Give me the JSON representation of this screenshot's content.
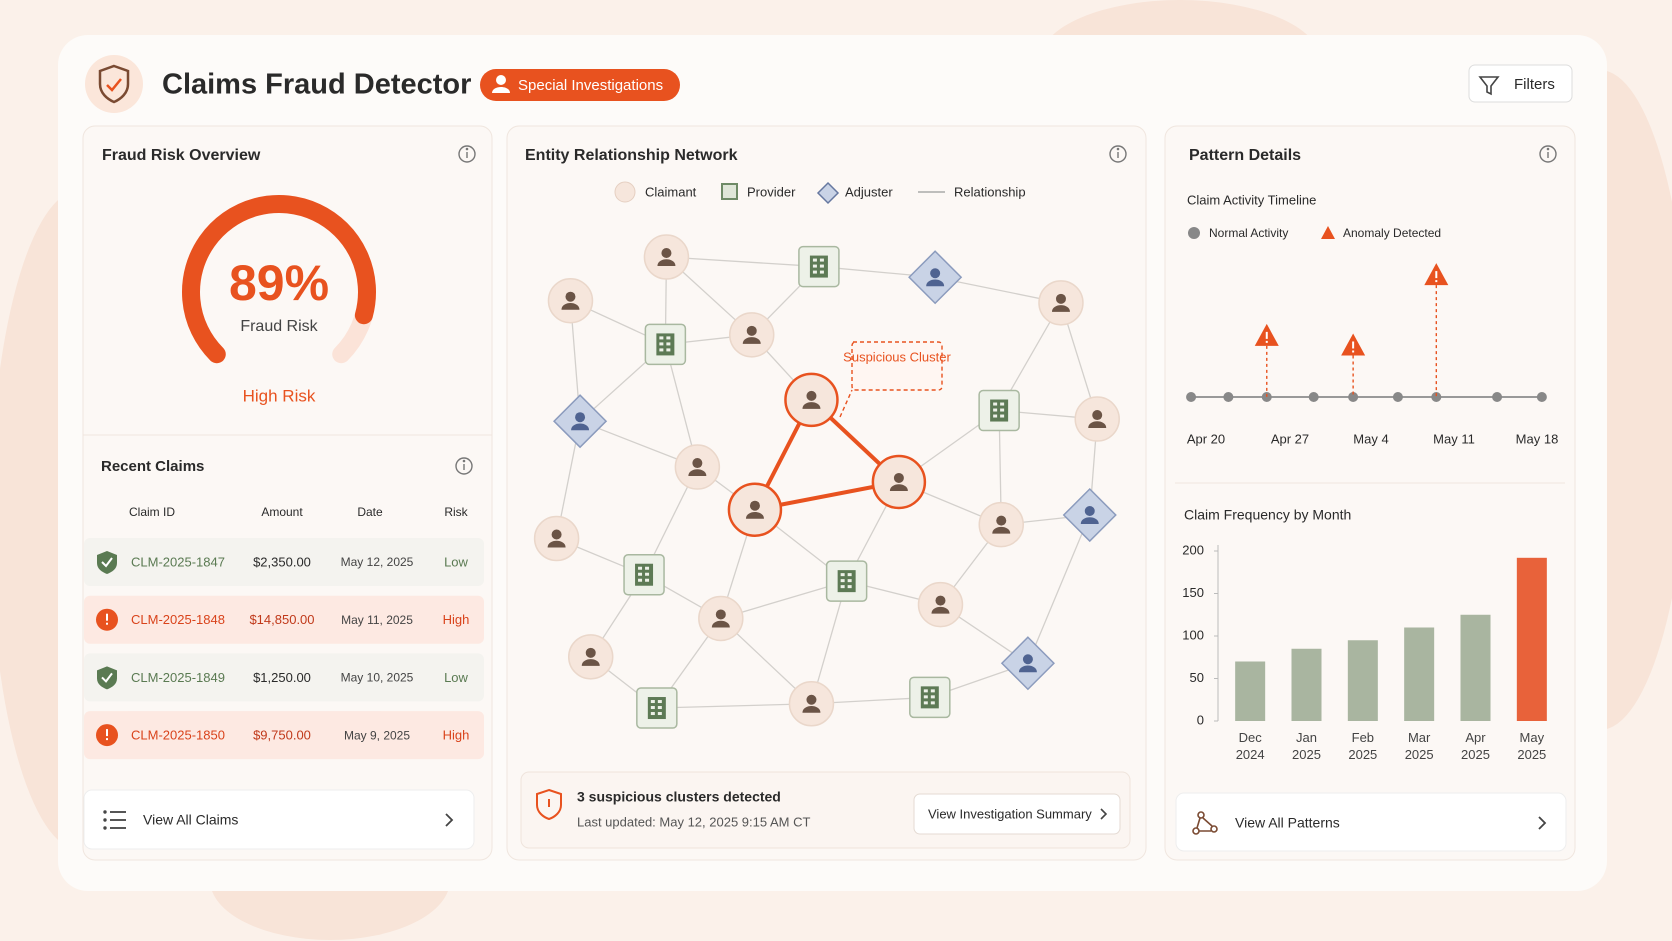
{
  "header": {
    "title": "Claims Fraud Detector",
    "badge": "Special Investigations",
    "filters": "Filters"
  },
  "risk_overview": {
    "title": "Fraud Risk Overview",
    "value": 89,
    "value_label": "89%",
    "label": "Fraud Risk",
    "level": "High Risk"
  },
  "recent_claims": {
    "title": "Recent Claims",
    "columns": [
      "Claim ID",
      "Amount",
      "Date",
      "Risk"
    ],
    "rows": [
      [
        "CLM-2025-1847",
        "$2,350.00",
        "May 12, 2025",
        "Low"
      ],
      [
        "CLM-2025-1848",
        "$14,850.00",
        "May 11, 2025",
        "High"
      ],
      [
        "CLM-2025-1849",
        "$1,250.00",
        "May 10, 2025",
        "Low"
      ],
      [
        "CLM-2025-1850",
        "$9,750.00",
        "May 9, 2025",
        "High"
      ]
    ],
    "link": "View All Claims"
  },
  "network": {
    "title": "Entity Relationship Network",
    "legend": [
      "Claimant",
      "Provider",
      "Adjuster",
      "Relationship"
    ],
    "annotation": "Suspicious Cluster",
    "footer": {
      "headline": "3 suspicious clusters detected",
      "updated": "Last updated: May 12, 2025 9:15 AM CT",
      "button": "View Investigation Summary"
    }
  },
  "pattern": {
    "title": "Pattern Details",
    "timeline": {
      "title": "Claim Activity Timeline",
      "legend": [
        "Normal Activity",
        "Anomaly Detected"
      ],
      "labels": [
        "Apr 20",
        "Apr 27",
        "May 4",
        "May 11",
        "May 18"
      ]
    },
    "link": "View All Patterns"
  },
  "chart_data": {
    "type": "bar",
    "title": "Claim Frequency by Month",
    "categories": [
      "Dec 2024",
      "Jan 2025",
      "Feb 2025",
      "Mar 2025",
      "Apr 2025",
      "May 2025"
    ],
    "values": [
      70,
      85,
      95,
      110,
      125,
      192
    ],
    "colors": [
      "#a9b5a0",
      "#a9b5a0",
      "#a9b5a0",
      "#a9b5a0",
      "#a9b5a0",
      "#e8623a"
    ],
    "ylim": [
      0,
      200
    ],
    "yticks": [
      0,
      50,
      100,
      150,
      200
    ]
  }
}
